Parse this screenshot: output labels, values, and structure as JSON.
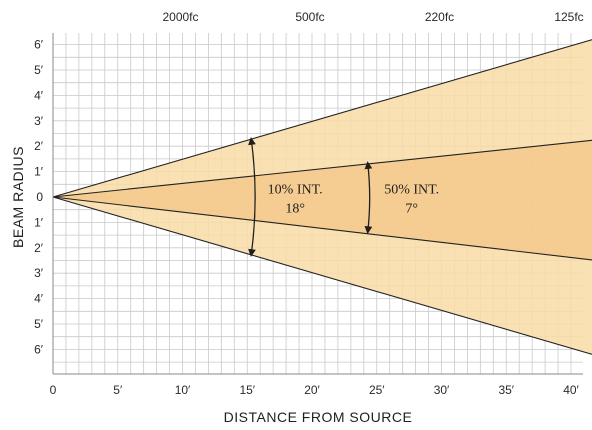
{
  "chart_data": {
    "type": "area",
    "xlabel": "DISTANCE FROM SOURCE",
    "ylabel": "BEAM RADIUS",
    "xlim": [
      0,
      42
    ],
    "ylim": [
      -7,
      7
    ],
    "grid": true,
    "x_ticks": [
      {
        "value": 0,
        "label": "0"
      },
      {
        "value": 5,
        "label": "5′"
      },
      {
        "value": 10,
        "label": "10′"
      },
      {
        "value": 15,
        "label": "15′"
      },
      {
        "value": 20,
        "label": "20′"
      },
      {
        "value": 25,
        "label": "25′"
      },
      {
        "value": 30,
        "label": "30′"
      },
      {
        "value": 35,
        "label": "35′"
      },
      {
        "value": 40,
        "label": "40′"
      }
    ],
    "y_ticks": [
      {
        "value": 6,
        "label": "6′"
      },
      {
        "value": 5,
        "label": "5′"
      },
      {
        "value": 4,
        "label": "4′"
      },
      {
        "value": 3,
        "label": "3′"
      },
      {
        "value": 2,
        "label": "2′"
      },
      {
        "value": 1,
        "label": "1′"
      },
      {
        "value": 0,
        "label": "0"
      },
      {
        "value": -1,
        "label": "1′"
      },
      {
        "value": -2,
        "label": "2′"
      },
      {
        "value": -3,
        "label": "3′"
      },
      {
        "value": -4,
        "label": "4′"
      },
      {
        "value": -5,
        "label": "5′"
      },
      {
        "value": -6,
        "label": "6′"
      }
    ],
    "top_labels": [
      {
        "x": 10,
        "label": "2000fc"
      },
      {
        "x": 20,
        "label": "500fc"
      },
      {
        "x": 30,
        "label": "220fc"
      },
      {
        "x": 40,
        "label": "125fc"
      }
    ],
    "series": [
      {
        "label": "10% INT.",
        "angle": "18°",
        "x": [
          0,
          42
        ],
        "upper": [
          0,
          6.25
        ],
        "lower": [
          0,
          -6.25
        ],
        "color": "#f9dca6"
      },
      {
        "label": "50% INT.",
        "angle": "7°",
        "x": [
          0,
          42
        ],
        "upper": [
          0,
          2.25
        ],
        "lower": [
          0,
          -2.5
        ],
        "color": "#f3c88c"
      }
    ],
    "annotations": [
      {
        "text_line1": "10% INT.",
        "text_line2": "18°",
        "arrow_x": 15.3,
        "arrow_from": 2.3,
        "arrow_to": -2.3
      },
      {
        "text_line1": "50% INT.",
        "text_line2": "7°",
        "arrow_x": 24.3,
        "arrow_from": 1.35,
        "arrow_to": -1.4
      }
    ],
    "colors": {
      "outer_fill": "#f9dca6",
      "inner_fill": "#f3c88c",
      "grid": "#c9c9c9",
      "lines": "#222222"
    }
  }
}
